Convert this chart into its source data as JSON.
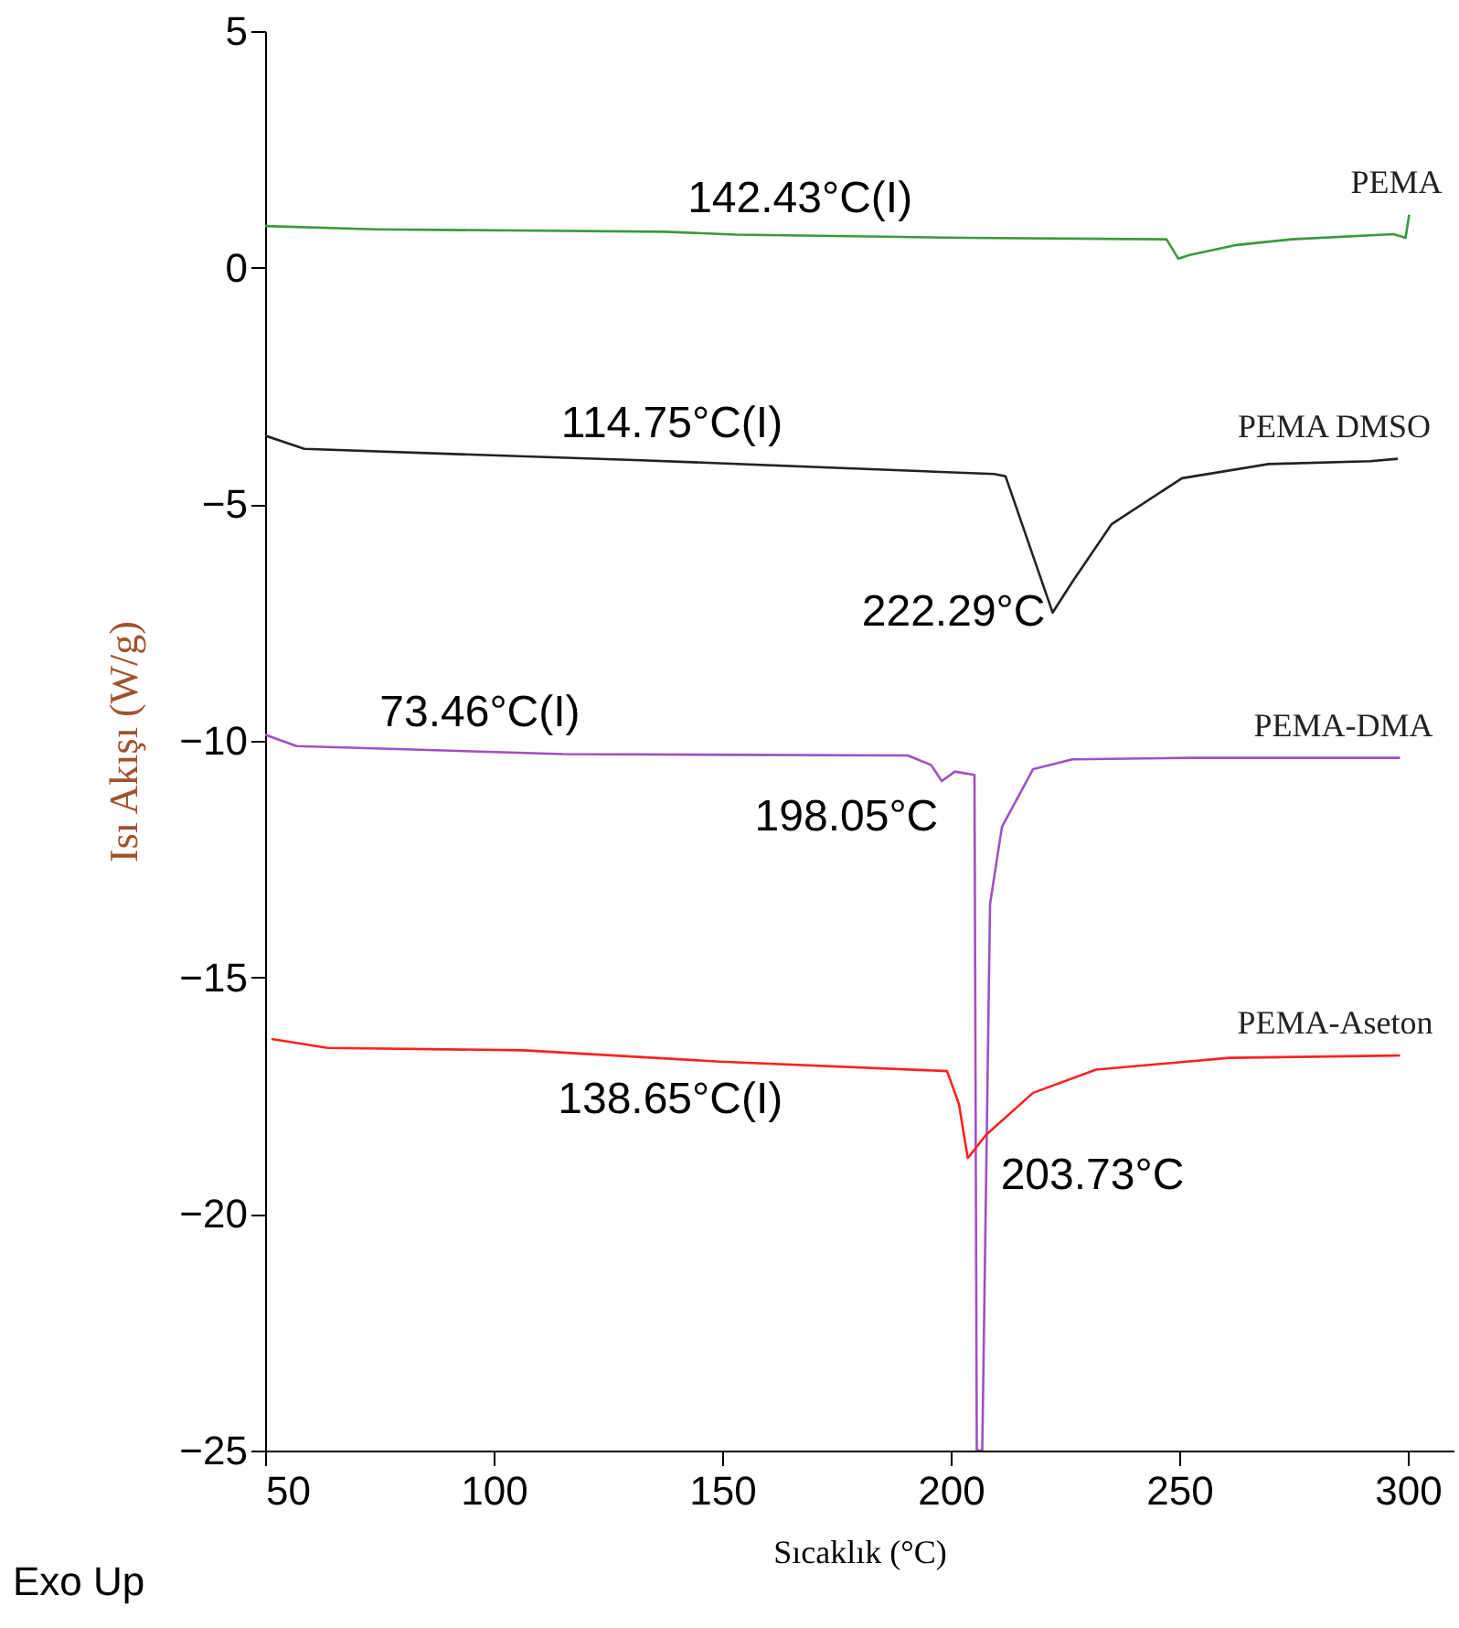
{
  "chart_data": {
    "type": "line",
    "xlabel": "Sıcaklık (°C)",
    "ylabel": "Isı Akışı (W/g)",
    "xlim": [
      50,
      310
    ],
    "xticks": [
      50,
      100,
      150,
      200,
      250,
      300
    ],
    "ylim": [
      -25,
      5
    ],
    "yticks": [
      -25,
      -20,
      -15,
      -10,
      -5,
      0,
      5
    ],
    "grid": false,
    "marker": "none",
    "line_style": "solid",
    "series": [
      {
        "name": "PEMA",
        "color": "#3a9a3a",
        "x": [
          50,
          74.0,
          137.4,
          152.9,
          202.6,
          247.2,
          249.8,
          252.3,
          262.6,
          274.6,
          296.9,
          299.5,
          300.3
        ],
        "values": [
          0.88,
          0.81,
          0.76,
          0.7,
          0.63,
          0.6,
          0.19,
          0.27,
          0.48,
          0.6,
          0.71,
          0.63,
          1.12
        ]
      },
      {
        "name": "PEMA DMSO",
        "color": "#222222",
        "x": [
          50,
          58.6,
          98.0,
          132.3,
          209.5,
          212.0,
          222.3,
          226.6,
          235.2,
          250.6,
          269.5,
          291.8,
          297.8
        ],
        "values": [
          -3.55,
          -3.83,
          -3.96,
          -4.07,
          -4.36,
          -4.41,
          -7.29,
          -6.64,
          -5.42,
          -4.45,
          -4.15,
          -4.09,
          -4.04
        ]
      },
      {
        "name": "PEMA-DMA",
        "color": "#a050c0",
        "x": [
          50,
          56.9,
          115.2,
          190.6,
          195.7,
          198.05,
          200.9,
          205.2,
          205.7,
          206.9,
          208.6,
          211.2,
          218.0,
          226.6,
          252.3,
          298.3
        ],
        "values": [
          -9.87,
          -10.11,
          -10.28,
          -10.31,
          -10.51,
          -10.85,
          -10.65,
          -10.72,
          -25,
          -25,
          -13.45,
          -11.82,
          -10.6,
          -10.39,
          -10.36,
          -10.36
        ]
      },
      {
        "name": "PEMA-Aseton",
        "color": "#ff2020",
        "x": [
          51.4,
          63.7,
          106.6,
          149.5,
          199.2,
          201.8,
          203.73,
          207.7,
          218.0,
          231.8,
          260.9,
          298.3
        ],
        "values": [
          -16.3,
          -16.49,
          -16.54,
          -16.78,
          -16.98,
          -17.68,
          -18.82,
          -18.33,
          -17.44,
          -16.95,
          -16.7,
          -16.65
        ]
      }
    ],
    "annotations": [
      {
        "text": "142.43°C(I)",
        "x": 142.43,
        "y": 0.75
      },
      {
        "text": "114.75°C(I)",
        "x": 114.75,
        "y": -4.0
      },
      {
        "text": "222.29°C",
        "x": 222.29,
        "y": -7.29
      },
      {
        "text": "73.46°C(I)",
        "x": 73.46,
        "y": -10.2
      },
      {
        "text": "198.05°C",
        "x": 198.05,
        "y": -10.85
      },
      {
        "text": "138.65°C(I)",
        "x": 138.65,
        "y": -16.6
      },
      {
        "text": "203.73°C",
        "x": 203.73,
        "y": -18.82
      },
      "Exo Up"
    ]
  }
}
